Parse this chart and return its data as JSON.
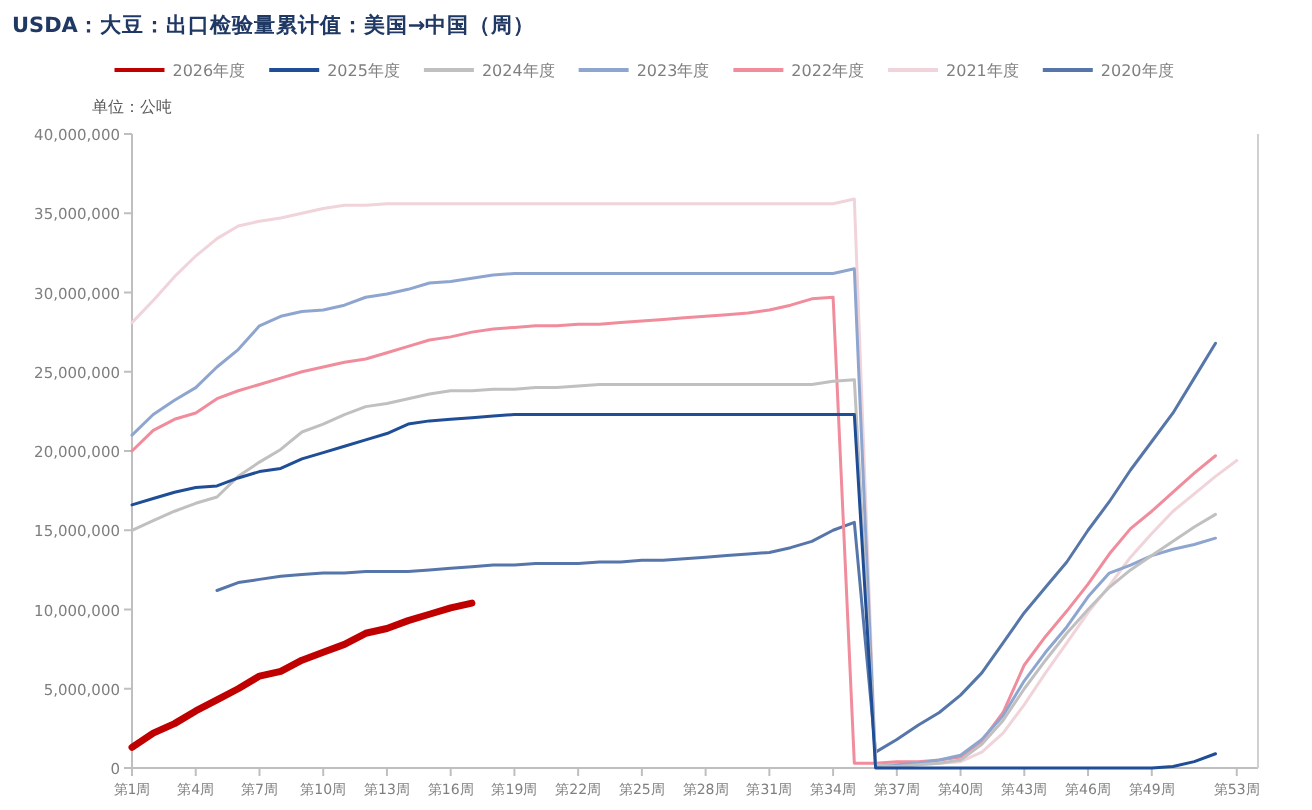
{
  "chart_data": {
    "type": "line",
    "title": "USDA：大豆：出口检验量累计值：美国→中国（周）",
    "ylabel": "单位：公吨",
    "categories": [
      "第1周",
      null,
      null,
      "第4周",
      null,
      null,
      "第7周",
      null,
      null,
      "第10周",
      null,
      null,
      "第13周",
      null,
      null,
      "第16周",
      null,
      null,
      "第19周",
      null,
      null,
      "第22周",
      null,
      null,
      "第25周",
      null,
      null,
      "第28周",
      null,
      null,
      "第31周",
      null,
      null,
      "第34周",
      null,
      null,
      "第37周",
      null,
      null,
      "第40周",
      null,
      null,
      "第43周",
      null,
      null,
      "第46周",
      null,
      null,
      "第49周",
      null,
      null,
      null,
      "第53周"
    ],
    "ylim": [
      0,
      40000000
    ],
    "yticks": [
      0,
      {
        "value": 5000000,
        "label": "5,000,000"
      },
      {
        "value": 10000000,
        "label": "10,000,000"
      },
      {
        "value": 15000000,
        "label": "15,000,000"
      },
      {
        "value": 20000000,
        "label": "20,000,000"
      },
      {
        "value": 25000000,
        "label": "25,000,000"
      },
      {
        "value": 30000000,
        "label": "30,000,000"
      },
      {
        "value": 35000000,
        "label": "35,000,000"
      },
      {
        "value": 40000000,
        "label": "40,000,000"
      }
    ],
    "legend": "top",
    "grid": false,
    "marker": "none",
    "line_style": "solid",
    "series": [
      {
        "name": "2026年度",
        "color": "#c00000",
        "values": [
          1300000,
          2200000,
          2800000,
          3600000,
          4300000,
          5000000,
          5800000,
          6100000,
          6800000,
          7300000,
          7800000,
          8500000,
          8800000,
          9300000,
          9700000,
          10100000,
          10400000,
          null,
          null,
          null,
          null,
          null,
          null,
          null,
          null,
          null,
          null,
          null,
          null,
          null,
          null,
          null,
          null,
          null,
          null,
          null,
          null,
          null,
          null,
          null,
          null,
          null,
          null,
          null,
          null,
          null,
          null,
          null,
          null,
          null,
          null,
          null,
          null
        ]
      },
      {
        "name": "2025年度",
        "color": "#1f4e96",
        "values": [
          16600000,
          17000000,
          17400000,
          17700000,
          17800000,
          18300000,
          18700000,
          18900000,
          19500000,
          19900000,
          20300000,
          20700000,
          21100000,
          21700000,
          21900000,
          22000000,
          22100000,
          22200000,
          22300000,
          22300000,
          22300000,
          22300000,
          22300000,
          22300000,
          22300000,
          22300000,
          22300000,
          22300000,
          22300000,
          22300000,
          22300000,
          22300000,
          22300000,
          22300000,
          22300000,
          0,
          0,
          0,
          0,
          0,
          0,
          0,
          0,
          0,
          0,
          0,
          0,
          0,
          0,
          100000,
          400000,
          900000,
          null
        ]
      },
      {
        "name": "2024年度",
        "color": "#c0c0c0",
        "values": [
          15000000,
          15600000,
          16200000,
          16700000,
          17100000,
          18400000,
          19300000,
          20100000,
          21200000,
          21700000,
          22300000,
          22800000,
          23000000,
          23300000,
          23600000,
          23800000,
          23800000,
          23900000,
          23900000,
          24000000,
          24000000,
          24100000,
          24200000,
          24200000,
          24200000,
          24200000,
          24200000,
          24200000,
          24200000,
          24200000,
          24200000,
          24200000,
          24200000,
          24400000,
          24500000,
          200000,
          100000,
          200000,
          300000,
          500000,
          1500000,
          3000000,
          5000000,
          6800000,
          8500000,
          10000000,
          11400000,
          12500000,
          13400000,
          14300000,
          15200000,
          16000000,
          null
        ]
      },
      {
        "name": "2023年度",
        "color": "#8ea6cf",
        "values": [
          21000000,
          22300000,
          23200000,
          24000000,
          25300000,
          26400000,
          27900000,
          28500000,
          28800000,
          28900000,
          29200000,
          29700000,
          29900000,
          30200000,
          30600000,
          30700000,
          30900000,
          31100000,
          31200000,
          31200000,
          31200000,
          31200000,
          31200000,
          31200000,
          31200000,
          31200000,
          31200000,
          31200000,
          31200000,
          31200000,
          31200000,
          31200000,
          31200000,
          31200000,
          31500000,
          100000,
          200000,
          300000,
          500000,
          800000,
          1800000,
          3300000,
          5500000,
          7300000,
          8900000,
          10800000,
          12300000,
          12800000,
          13400000,
          13800000,
          14100000,
          14500000,
          null
        ]
      },
      {
        "name": "2022年度",
        "color": "#f08c9c",
        "values": [
          20000000,
          21300000,
          22000000,
          22400000,
          23300000,
          23800000,
          24200000,
          24600000,
          25000000,
          25300000,
          25600000,
          25800000,
          26200000,
          26600000,
          27000000,
          27200000,
          27500000,
          27700000,
          27800000,
          27900000,
          27900000,
          28000000,
          28000000,
          28100000,
          28200000,
          28300000,
          28400000,
          28500000,
          28600000,
          28700000,
          28900000,
          29200000,
          29600000,
          29700000,
          300000,
          300000,
          400000,
          400000,
          500000,
          700000,
          1700000,
          3500000,
          6500000,
          8300000,
          9900000,
          11600000,
          13500000,
          15100000,
          16200000,
          17400000,
          18600000,
          19700000,
          null
        ]
      },
      {
        "name": "2021年度",
        "color": "#f0d4da",
        "values": [
          28100000,
          29500000,
          31000000,
          32300000,
          33400000,
          34200000,
          34500000,
          34700000,
          35000000,
          35300000,
          35500000,
          35500000,
          35600000,
          35600000,
          35600000,
          35600000,
          35600000,
          35600000,
          35600000,
          35600000,
          35600000,
          35600000,
          35600000,
          35600000,
          35600000,
          35600000,
          35600000,
          35600000,
          35600000,
          35600000,
          35600000,
          35600000,
          35600000,
          35600000,
          35900000,
          100000,
          100000,
          200000,
          300000,
          400000,
          1000000,
          2200000,
          4000000,
          6000000,
          7900000,
          9800000,
          11500000,
          13300000,
          14800000,
          16200000,
          17300000,
          18400000,
          19400000
        ]
      },
      {
        "name": "2020年度",
        "color": "#5676aa",
        "values": [
          null,
          null,
          null,
          null,
          11200000,
          11700000,
          11900000,
          12100000,
          12200000,
          12300000,
          12300000,
          12400000,
          12400000,
          12400000,
          12500000,
          12600000,
          12700000,
          12800000,
          12800000,
          12900000,
          12900000,
          12900000,
          13000000,
          13000000,
          13100000,
          13100000,
          13200000,
          13300000,
          13400000,
          13500000,
          13600000,
          13900000,
          14300000,
          15000000,
          15500000,
          1000000,
          1800000,
          2700000,
          3500000,
          4600000,
          6000000,
          7900000,
          9800000,
          11400000,
          13000000,
          15000000,
          16800000,
          18800000,
          20600000,
          22400000,
          24600000,
          26800000,
          null
        ]
      }
    ]
  }
}
